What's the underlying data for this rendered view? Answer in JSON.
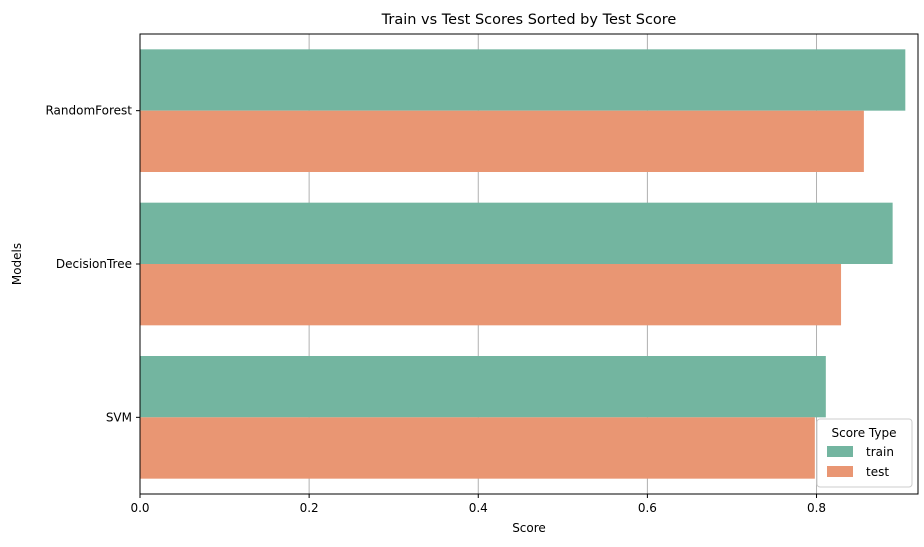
{
  "chart_data": {
    "type": "bar",
    "orientation": "horizontal",
    "title": "Train vs Test Scores Sorted by Test Score",
    "xlabel": "Score",
    "ylabel": "Models",
    "categories": [
      "RandomForest",
      "DecisionTree",
      "SVM"
    ],
    "series": [
      {
        "name": "train",
        "values": [
          0.905,
          0.89,
          0.811
        ],
        "color": "#73b5a0"
      },
      {
        "name": "test",
        "values": [
          0.856,
          0.829,
          0.798
        ],
        "color": "#e99673"
      }
    ],
    "xlim": [
      0,
      0.92
    ],
    "xticks": [
      0.0,
      0.2,
      0.4,
      0.6,
      0.8
    ],
    "xtick_labels": [
      "0.0",
      "0.2",
      "0.4",
      "0.6",
      "0.8"
    ],
    "grid": "x",
    "legend": {
      "title": "Score Type",
      "placement": "lower-right"
    }
  }
}
